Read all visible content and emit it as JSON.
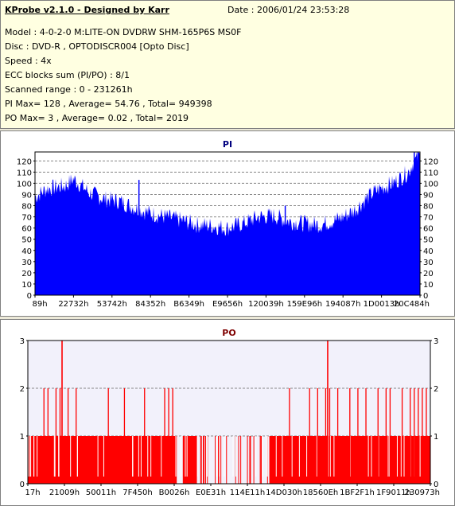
{
  "header": {
    "title": "KProbe v2.1.0 - Designed by Karr",
    "date": "Date : 2006/01/24 23:53:28",
    "lines": [
      "Model : 4-0-2-0 M:LITE-ON DVDRW SHM-165P6S MS0F",
      "Disc : DVD-R , OPTODISCR004 [Opto Disc]",
      "Speed : 4x",
      "ECC blocks sum (PI/PO) : 8/1",
      "Scanned range : 0 - 231261h",
      "PI Max= 128 , Average= 54.76 , Total= 949398",
      "PO Max= 3 , Average= 0.02 , Total= 2019"
    ]
  },
  "colors": {
    "pi_fill": "#0000ff",
    "po_fill": "#ff0000",
    "pi_plot_bg": "#ffffff",
    "po_plot_bg": "#f2f1fb",
    "pi_title": "#00007f",
    "po_title": "#7f0000"
  },
  "chart_data": [
    {
      "type": "area",
      "title": "PI",
      "ylim": [
        0,
        128
      ],
      "yticks": [
        0,
        10,
        20,
        30,
        40,
        50,
        60,
        70,
        80,
        90,
        100,
        110,
        120
      ],
      "grid": true,
      "xticklabels": [
        "89h",
        "22732h",
        "53742h",
        "84352h",
        "B6349h",
        "E9656h",
        "120039h",
        "159E96h",
        "194087h",
        "1D0013h",
        "20C484h"
      ],
      "envelope": {
        "x": [
          0,
          0.03,
          0.08,
          0.1,
          0.14,
          0.18,
          0.22,
          0.26,
          0.3,
          0.34,
          0.38,
          0.42,
          0.46,
          0.5,
          0.54,
          0.58,
          0.62,
          0.66,
          0.7,
          0.74,
          0.78,
          0.8,
          0.83,
          0.86,
          0.88,
          0.9,
          0.93,
          0.95,
          0.97,
          0.98,
          1.0
        ],
        "y": [
          88,
          95,
          98,
          104,
          92,
          86,
          84,
          78,
          73,
          70,
          67,
          63,
          62,
          60,
          64,
          70,
          71,
          66,
          64,
          63,
          67,
          70,
          76,
          86,
          92,
          96,
          100,
          105,
          110,
          117,
          125
        ]
      },
      "spikes": [
        {
          "x": 0.27,
          "y": 103
        },
        {
          "x": 0.995,
          "y": 128
        },
        {
          "x": 0.985,
          "y": 128
        },
        {
          "x": 0.65,
          "y": 80
        }
      ]
    },
    {
      "type": "bar",
      "title": "PO",
      "ylim": [
        0,
        3
      ],
      "yticks": [
        0,
        1,
        2,
        3
      ],
      "grid": true,
      "xticklabels": [
        "17h",
        "21009h",
        "50011h",
        "7F450h",
        "B0026h",
        "E0E31h",
        "114E11h",
        "14D030h",
        "18560Eh",
        "1BF2F1h",
        "1F9011h",
        "230973h"
      ],
      "dense_ranges": [
        [
          0,
          0.37
        ],
        [
          0.385,
          0.42
        ],
        [
          0.6,
          1.0
        ]
      ],
      "sparse_ranges": [
        [
          0.42,
          0.6
        ]
      ],
      "twos": [
        0.04,
        0.05,
        0.07,
        0.08,
        0.1,
        0.12,
        0.2,
        0.24,
        0.29,
        0.34,
        0.35,
        0.36,
        0.65,
        0.7,
        0.72,
        0.74,
        0.75,
        0.77,
        0.8,
        0.82,
        0.84,
        0.87,
        0.89,
        0.9,
        0.93,
        0.95,
        0.96,
        0.97,
        0.98,
        0.99
      ],
      "threes": [
        0.085,
        0.745
      ]
    }
  ]
}
